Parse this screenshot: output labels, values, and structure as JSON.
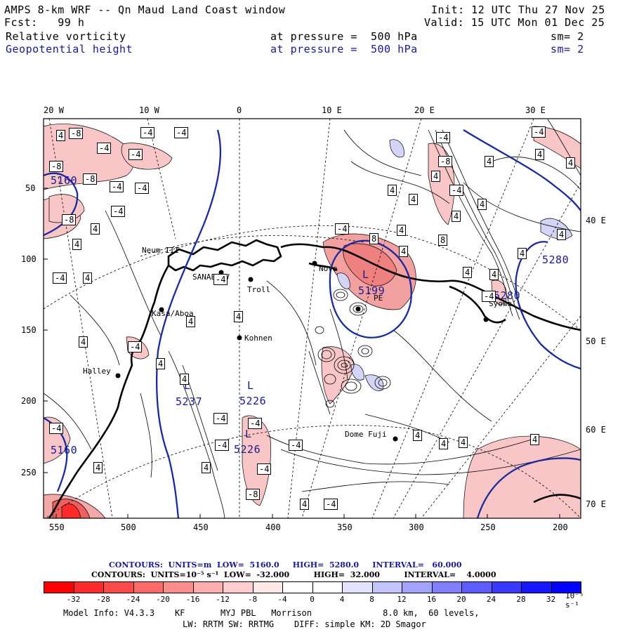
{
  "header": {
    "title": "AMPS 8-km WRF -- Qn Maud Land Coast window",
    "init": "Init: 12 UTC Thu 27 Nov 25",
    "fcst": "Fcst:   99 h",
    "valid": "Valid: 15 UTC Mon 01 Dec 25",
    "field1_name": "Relative vorticity",
    "field1_level": "at pressure =  500 hPa",
    "field1_sm": "sm= 2",
    "field2_name": "Geopotential height",
    "field2_level": "at pressure =  500 hPa",
    "field2_sm": "sm= 2"
  },
  "map": {
    "top_lon_labels": [
      "20 W",
      "10 W",
      "0",
      "10 E",
      "20 E",
      "30 E"
    ],
    "right_lon_labels": [
      "40 E",
      "50 E",
      "60 E",
      "70 E"
    ],
    "left_y_ticks": [
      "50",
      "100",
      "150",
      "200",
      "250"
    ],
    "bottom_x_ticks": [
      "550",
      "500",
      "450",
      "400",
      "350",
      "300",
      "250",
      "200"
    ],
    "stations": [
      {
        "name": "Neum III"
      },
      {
        "name": "SANAE IV"
      },
      {
        "name": "Troll"
      },
      {
        "name": "Novo"
      },
      {
        "name": "PE"
      },
      {
        "name": "Kohnen"
      },
      {
        "name": "Kasa/Aboa"
      },
      {
        "name": "Halley"
      },
      {
        "name": "Dome Fuji"
      },
      {
        "name": "Syowa"
      }
    ],
    "height_labels": [
      "5160",
      "5199",
      "5237",
      "5226",
      "5226",
      "5160",
      "5280",
      "5280"
    ],
    "low_marker": "L",
    "vort_label_pos": "4",
    "vort_label_neg4": "-4",
    "vort_label_neg8": "-8",
    "vort_label_8": "8",
    "colors": {
      "height_contour": "#1a2a9c",
      "coast": "#000000",
      "neg_fill": "#f5b5b5",
      "pos_fill": "#c8c8f5"
    }
  },
  "legend": {
    "contours_height": "CONTOURS:  UNITS=m  LOW=  5160.0     HIGH=  5280.0     INTERVAL=   60.000",
    "contours_vort": "CONTOURS:  UNITS=10⁻⁵ s⁻¹  LOW=  -32.000         HIGH=  32.000         INTERVAL=    4.0000",
    "colorbar_labels": [
      "-32",
      "-28",
      "-24",
      "-20",
      "-16",
      "-12",
      "-8",
      "-4",
      "0",
      "4",
      "8",
      "12",
      "16",
      "20",
      "24",
      "28",
      "32",
      "10⁻⁵ s⁻¹"
    ],
    "colorbar_colors": [
      "#ff0000",
      "#ff2a2a",
      "#ff4a4a",
      "#ff6a6a",
      "#ff8c8c",
      "#ffadad",
      "#ffcdcd",
      "#ffe8e8",
      "#ffffff",
      "#ffffff",
      "#e4e4ff",
      "#c4c4ff",
      "#a2a2ff",
      "#8080ff",
      "#5c5cff",
      "#3a3aff",
      "#1818ff",
      "#0000ff"
    ]
  },
  "footer": {
    "model_info": "Model Info: V4.3.3    KF       MYJ PBL   Morrison              8.0 km,  60 levels,",
    "physics": "LW: RRTM SW: RRTMG    DIFF: simple KM: 2D Smagor"
  }
}
